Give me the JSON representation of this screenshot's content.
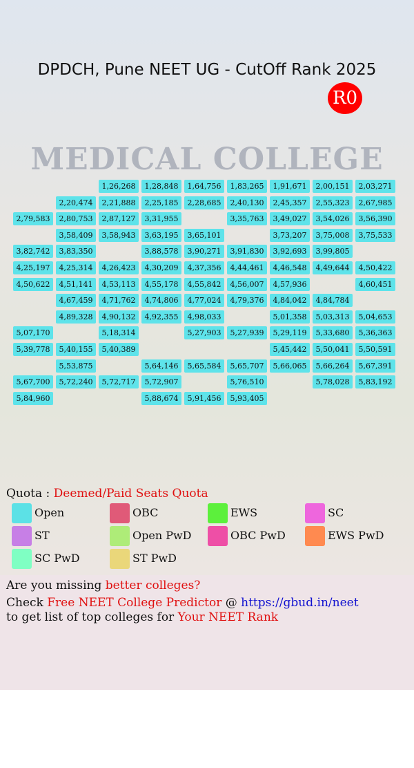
{
  "header": {
    "title": "DPDCH, Pune NEET UG - CutOff Rank 2025",
    "badge": "R0",
    "background_text": "MEDICAL COLLEGE"
  },
  "grid": {
    "color": "#5ee3ea",
    "rows": [
      [
        null,
        null,
        "1,26,268",
        "1,28,848",
        "1,64,756",
        "1,83,265",
        "1,91,671",
        "2,00,151",
        "2,03,271"
      ],
      [
        null,
        "2,20,474",
        "2,21,888",
        "2,25,185",
        "2,28,685",
        "2,40,130",
        "2,45,357",
        "2,55,323",
        "2,67,985"
      ],
      [
        "2,79,583",
        "2,80,753",
        "2,87,127",
        "3,31,955",
        null,
        "3,35,763",
        "3,49,027",
        "3,54,026",
        "3,56,390"
      ],
      [
        null,
        "3,58,409",
        "3,58,943",
        "3,63,195",
        "3,65,101",
        null,
        "3,73,207",
        "3,75,008",
        "3,75,533"
      ],
      [
        "3,82,742",
        "3,83,350",
        null,
        "3,88,578",
        "3,90,271",
        "3,91,830",
        "3,92,693",
        "3,99,805",
        null
      ],
      [
        "4,25,197",
        "4,25,314",
        "4,26,423",
        "4,30,209",
        "4,37,356",
        "4,44,461",
        "4,46,548",
        "4,49,644",
        "4,50,422"
      ],
      [
        "4,50,622",
        "4,51,141",
        "4,53,113",
        "4,55,178",
        "4,55,842",
        "4,56,007",
        "4,57,936",
        null,
        "4,60,451"
      ],
      [
        null,
        "4,67,459",
        "4,71,762",
        "4,74,806",
        "4,77,024",
        "4,79,376",
        "4,84,042",
        "4,84,784",
        null
      ],
      [
        null,
        "4,89,328",
        "4,90,132",
        "4,92,355",
        "4,98,033",
        null,
        "5,01,358",
        "5,03,313",
        "5,04,653"
      ],
      [
        "5,07,170",
        null,
        "5,18,314",
        null,
        "5,27,903",
        "5,27,939",
        "5,29,119",
        "5,33,680",
        "5,36,363"
      ],
      [
        "5,39,778",
        "5,40,155",
        "5,40,389",
        null,
        null,
        null,
        "5,45,442",
        "5,50,041",
        "5,50,591"
      ],
      [
        null,
        "5,53,875",
        null,
        "5,64,146",
        "5,65,584",
        "5,65,707",
        "5,66,065",
        "5,66,264",
        "5,67,391"
      ],
      [
        "5,67,700",
        "5,72,240",
        "5,72,717",
        "5,72,907",
        null,
        "5,76,510",
        null,
        "5,78,028",
        "5,83,192"
      ],
      [
        "5,84,960",
        null,
        null,
        "5,88,674",
        "5,91,456",
        "5,93,405",
        null,
        null,
        null
      ]
    ]
  },
  "quota": {
    "label": "Quota :",
    "value": "Deemed/Paid Seats Quota"
  },
  "legend": [
    {
      "name": "Open",
      "color": "#5ce1e6"
    },
    {
      "name": "OBC",
      "color": "#e05a78"
    },
    {
      "name": "EWS",
      "color": "#5cf03c"
    },
    {
      "name": "SC",
      "color": "#ee66dd"
    },
    {
      "name": "ST",
      "color": "#c77fe6"
    },
    {
      "name": "Open PwD",
      "color": "#aeec78"
    },
    {
      "name": "OBC PwD",
      "color": "#ee4fa6"
    },
    {
      "name": "EWS PwD",
      "color": "#ff8a50"
    },
    {
      "name": "SC PwD",
      "color": "#7fffc3"
    },
    {
      "name": "ST PwD",
      "color": "#ead77a"
    }
  ],
  "footer": {
    "line1": [
      "Are you missing ",
      "better colleges?"
    ],
    "line2": [
      "Check ",
      "Free NEET College Predictor",
      " @ ",
      "https://gbud.in/neet"
    ],
    "line3": [
      "to get list of top colleges for ",
      "Your NEET Rank"
    ]
  }
}
